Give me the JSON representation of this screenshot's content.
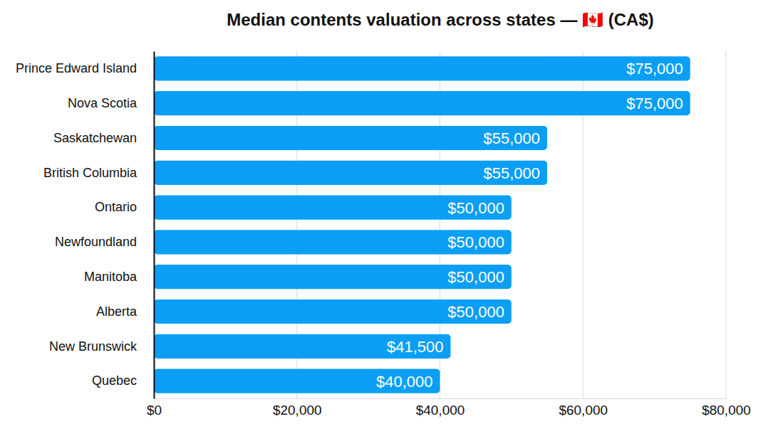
{
  "chart_data": {
    "type": "bar",
    "orientation": "horizontal",
    "title": "Median contents valuation across states — 🇨🇦 (CA$)",
    "categories": [
      "Prince Edward Island",
      "Nova Scotia",
      "Saskatchewan",
      "British Columbia",
      "Ontario",
      "Newfoundland",
      "Manitoba",
      "Alberta",
      "New Brunswick",
      "Quebec"
    ],
    "values": [
      75000,
      75000,
      55000,
      55000,
      50000,
      50000,
      50000,
      50000,
      41500,
      40000
    ],
    "value_labels": [
      "$75,000",
      "$75,000",
      "$55,000",
      "$55,000",
      "$50,000",
      "$50,000",
      "$50,000",
      "$50,000",
      "$41,500",
      "$40,000"
    ],
    "data_labels": true,
    "color": "#0a9ff5",
    "xlim": [
      0,
      80000
    ],
    "xticks": [
      {
        "value": 0,
        "label": "$0"
      },
      {
        "value": 20000,
        "label": "$20,000"
      },
      {
        "value": 40000,
        "label": "$40,000"
      },
      {
        "value": 60000,
        "label": "$60,000"
      },
      {
        "value": 80000,
        "label": "$80,000"
      }
    ],
    "grid": true
  }
}
